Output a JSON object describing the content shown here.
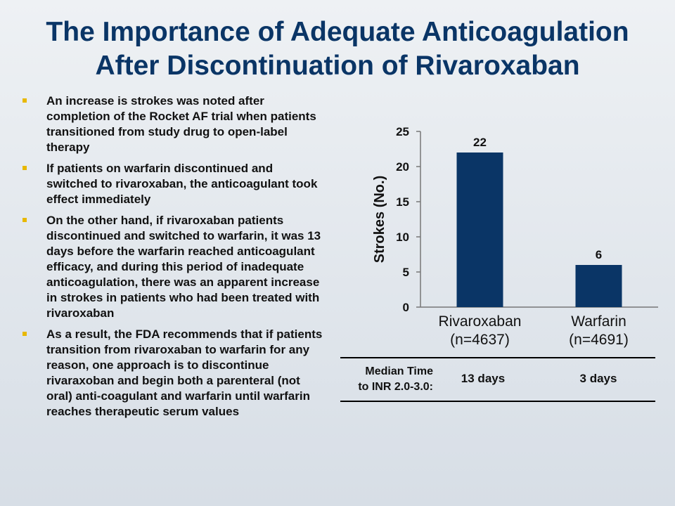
{
  "slide": {
    "title_line1": "The Importance of Adequate Anticoagulation",
    "title_line2": "After Discontinuation of Rivaroxaban",
    "bullets": [
      "An increase is strokes was noted after completion of the Rocket AF trial when patients transitioned from study drug to open-label therapy",
      "If patients on warfarin discontinued and switched to rivaroxaban,  the anticoagulant  took effect immediately",
      "On the other hand, if rivaroxaban patients discontinued and switched to warfarin, it was 13 days before the warfarin reached anticoagulant efficacy, and during this period of inadequate anticoagulation, there was an apparent increase in strokes in patients who had been treated with rivaroxaban",
      "As a result, the FDA recommends that if patients transition from rivaroxaban to warfarin for any reason, one approach is to discontinue rivaraxoban and begin both a parenteral (not oral) anti-coagulant and warfarin  until warfarin reaches therapeutic serum values"
    ]
  },
  "chart_data": {
    "type": "bar",
    "categories": [
      [
        "Rivaroxaban",
        "(n=4637)"
      ],
      [
        "Warfarin",
        "(n=4691)"
      ]
    ],
    "values": [
      22,
      6
    ],
    "data_labels": [
      "22",
      "6"
    ],
    "ylabel": "Strokes (No.)",
    "ylim": [
      0,
      25
    ],
    "yticks": [
      0,
      5,
      10,
      15,
      20,
      25
    ],
    "bar_color": "#0a3566",
    "grid": false,
    "legend": "none"
  },
  "median_table": {
    "label_line1": "Median Time",
    "label_line2": "to INR 2.0-3.0:",
    "values": [
      "13 days",
      "3 days"
    ]
  },
  "colors": {
    "title": "#0a3566",
    "bullet_marker": "#e8b800",
    "bar": "#0a3566"
  }
}
